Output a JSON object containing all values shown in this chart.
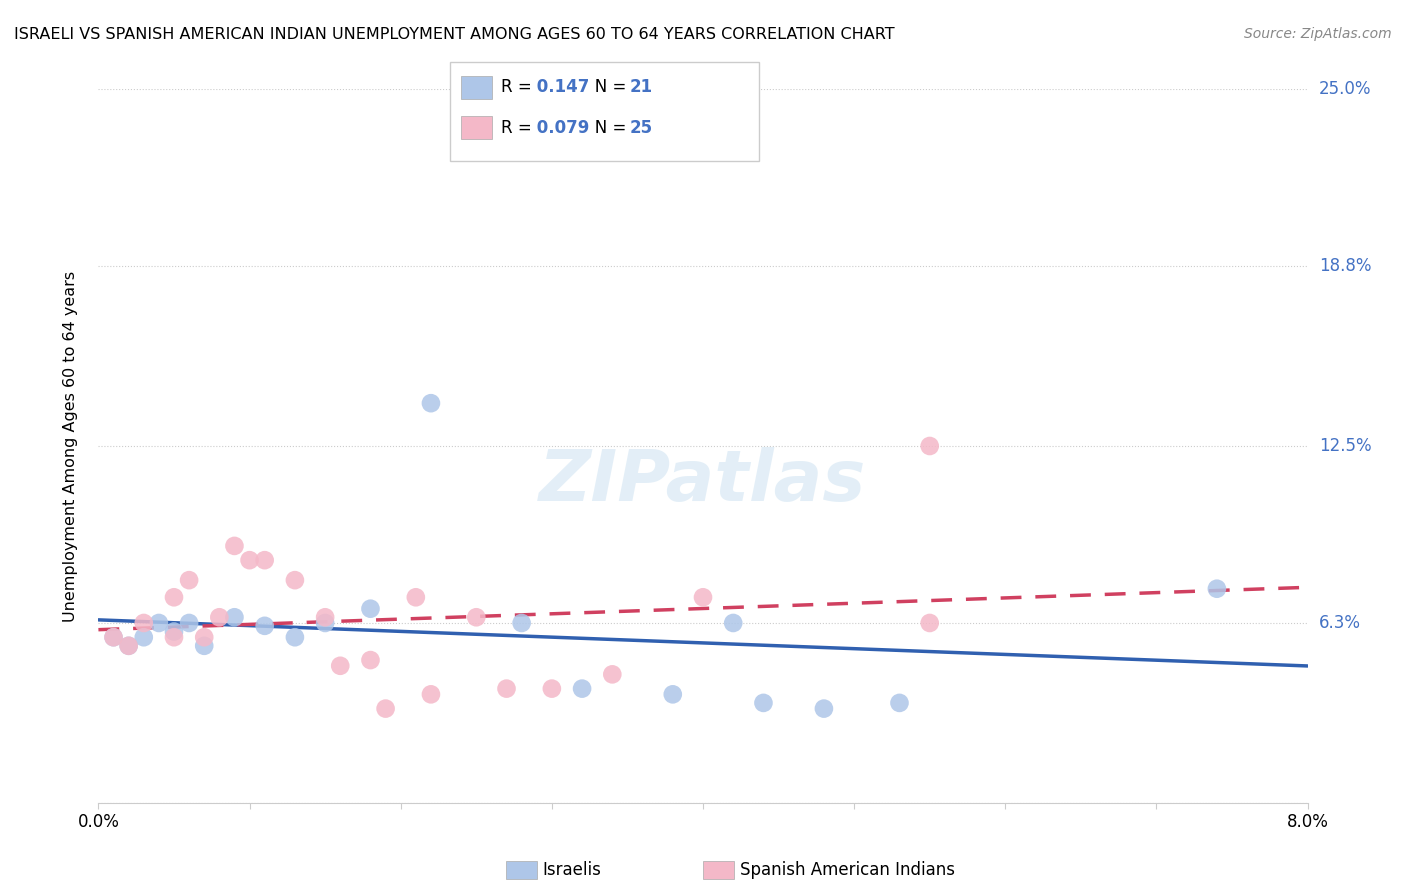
{
  "title": "ISRAELI VS SPANISH AMERICAN INDIAN UNEMPLOYMENT AMONG AGES 60 TO 64 YEARS CORRELATION CHART",
  "source": "Source: ZipAtlas.com",
  "ylabel": "Unemployment Among Ages 60 to 64 years",
  "xmin": 0.0,
  "xmax": 0.08,
  "ymin": 0.0,
  "ymax": 0.25,
  "yticks": [
    0.0,
    0.063,
    0.125,
    0.188,
    0.25
  ],
  "ytick_labels": [
    "",
    "6.3%",
    "12.5%",
    "18.8%",
    "25.0%"
  ],
  "legend_labels": [
    "Israelis",
    "Spanish American Indians"
  ],
  "israeli_R": 0.147,
  "israeli_N": 21,
  "spanish_R": 0.079,
  "spanish_N": 25,
  "israeli_color": "#aec6e8",
  "spanish_color": "#f4b8c8",
  "israeli_line_color": "#3060b0",
  "spanish_line_color": "#d04060",
  "watermark": "ZIPatlas",
  "israeli_x": [
    0.001,
    0.002,
    0.003,
    0.004,
    0.005,
    0.006,
    0.007,
    0.009,
    0.011,
    0.013,
    0.015,
    0.018,
    0.022,
    0.028,
    0.032,
    0.038,
    0.042,
    0.044,
    0.048,
    0.053,
    0.074
  ],
  "israeli_y": [
    0.058,
    0.055,
    0.058,
    0.063,
    0.06,
    0.063,
    0.055,
    0.065,
    0.062,
    0.058,
    0.063,
    0.068,
    0.14,
    0.063,
    0.04,
    0.038,
    0.063,
    0.035,
    0.033,
    0.035,
    0.075
  ],
  "spanish_x": [
    0.001,
    0.002,
    0.003,
    0.005,
    0.005,
    0.006,
    0.007,
    0.008,
    0.009,
    0.01,
    0.011,
    0.013,
    0.015,
    0.016,
    0.018,
    0.019,
    0.021,
    0.022,
    0.025,
    0.027,
    0.03,
    0.034,
    0.04,
    0.055,
    0.055
  ],
  "spanish_y": [
    0.058,
    0.055,
    0.063,
    0.058,
    0.072,
    0.078,
    0.058,
    0.065,
    0.09,
    0.085,
    0.085,
    0.078,
    0.065,
    0.048,
    0.05,
    0.033,
    0.072,
    0.038,
    0.065,
    0.04,
    0.04,
    0.045,
    0.072,
    0.125,
    0.063
  ]
}
